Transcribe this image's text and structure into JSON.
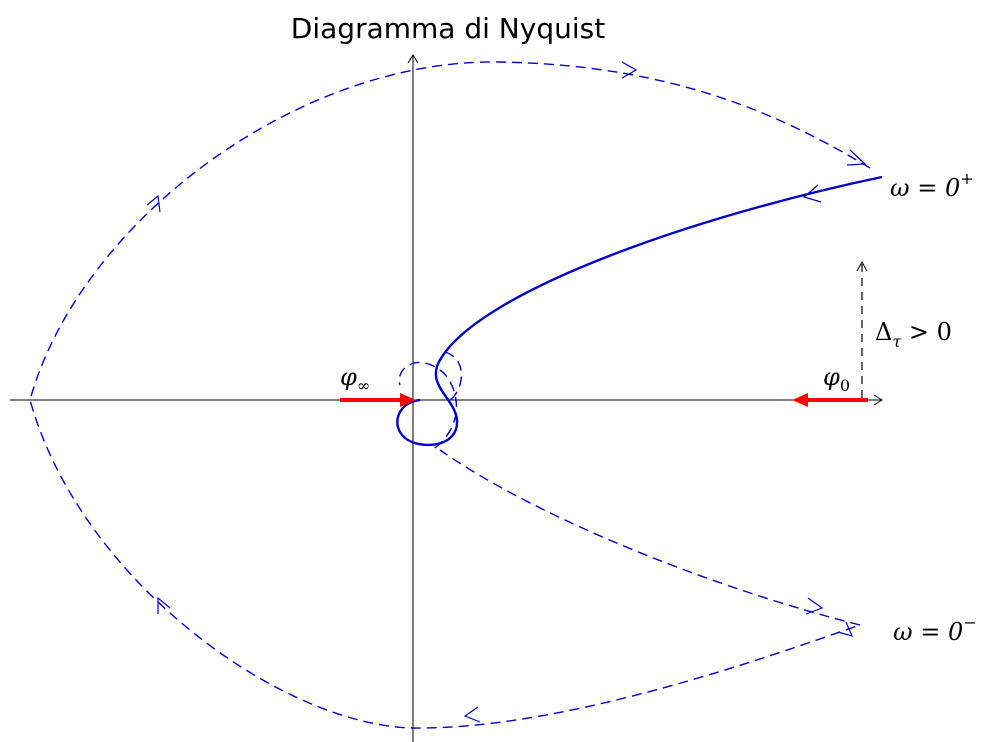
{
  "title": "Diagramma di Nyquist",
  "labels": {
    "omega_plus": {
      "base": "ω = 0",
      "sup": "+"
    },
    "omega_minus": {
      "base": "ω = 0",
      "sup": "−"
    },
    "delta_tau": {
      "base": "Δ",
      "sub": "τ",
      "rest": " > 0"
    },
    "phi_inf": {
      "base": "φ",
      "sub": "∞"
    },
    "phi_0": {
      "base": "φ",
      "sub": "0"
    }
  }
}
